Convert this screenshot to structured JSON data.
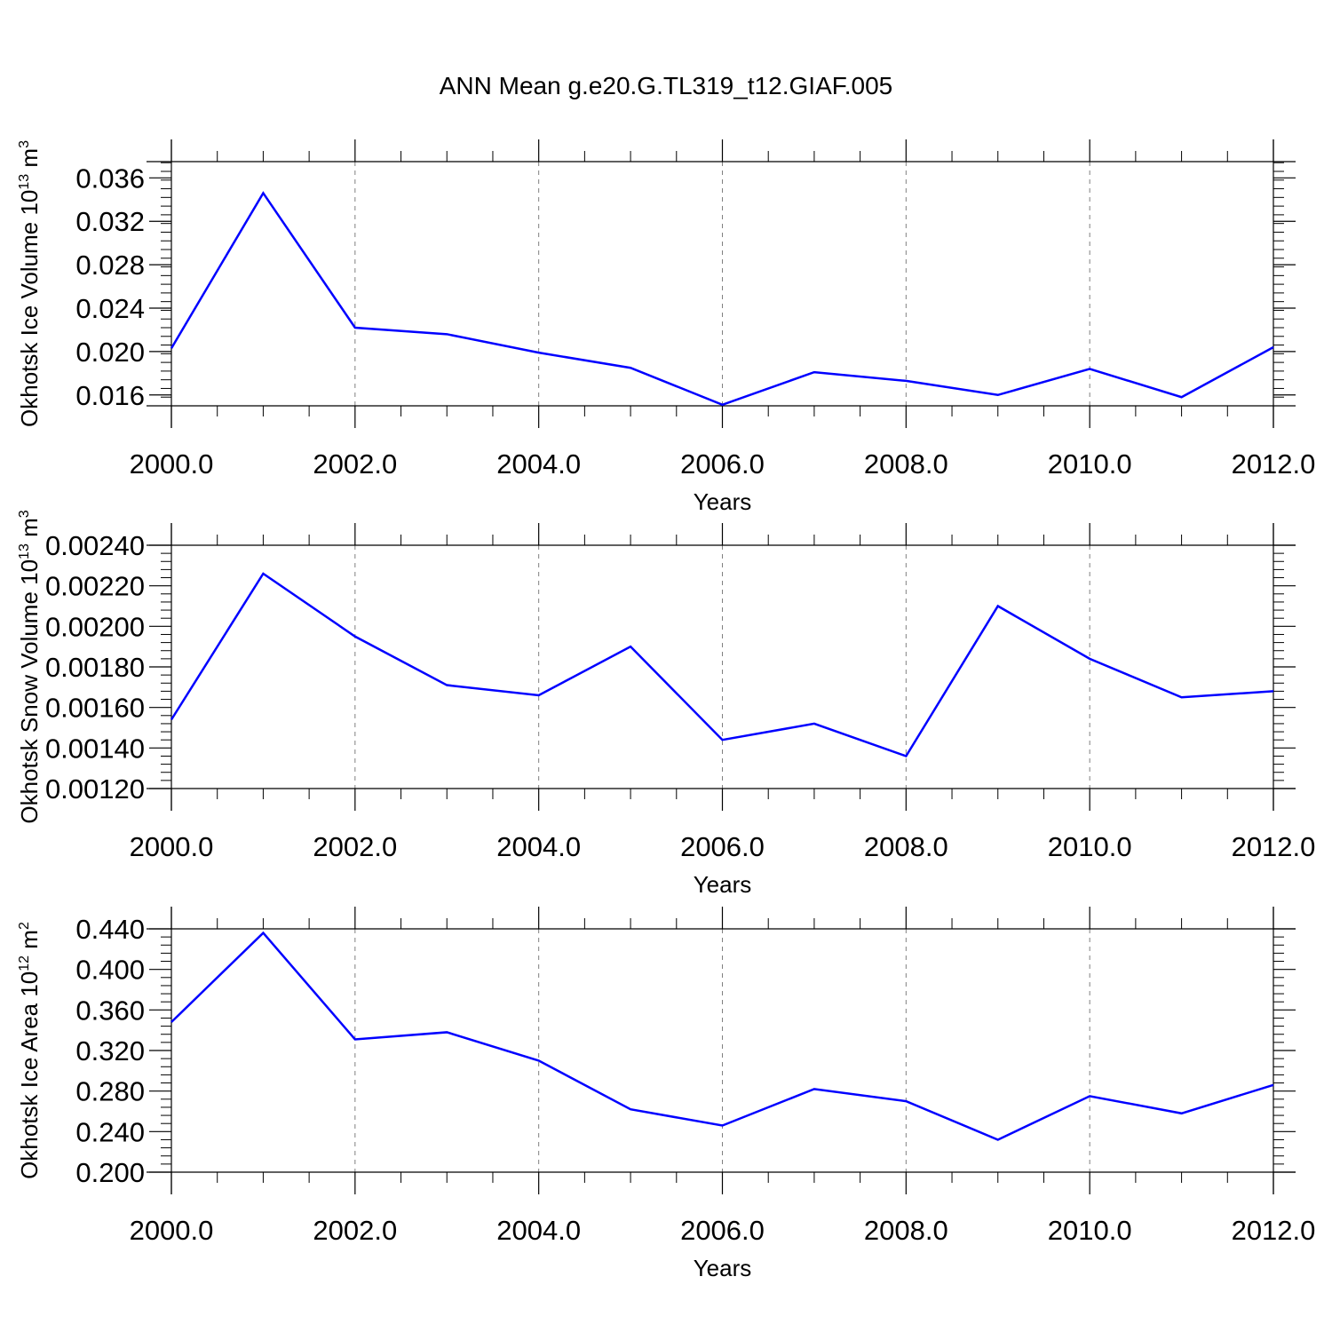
{
  "figure": {
    "title": "ANN Mean g.e20.G.TL319_t12.GIAF.005"
  },
  "colors": {
    "line": "#0000ff",
    "axis": "#000000",
    "grid": "#808080"
  },
  "chart_data": [
    {
      "type": "line",
      "xlabel": "Years",
      "ylabel": {
        "main": "Okhotsk Ice Volume 10",
        "exp": "13",
        "unit": " m",
        "unit_exp": "3"
      },
      "xlim": [
        2000,
        2012
      ],
      "ylim": [
        0.015,
        0.0375
      ],
      "xticks": [
        2000,
        2002,
        2004,
        2006,
        2008,
        2010,
        2012
      ],
      "xtick_labels": [
        "2000.0",
        "2002.0",
        "2004.0",
        "2006.0",
        "2008.0",
        "2010.0",
        "2012.0"
      ],
      "yticks": [
        0.016,
        0.02,
        0.024,
        0.028,
        0.032,
        0.036
      ],
      "ytick_labels": [
        "0.016",
        "0.020",
        "0.024",
        "0.028",
        "0.032",
        "0.036"
      ],
      "grid": "vertical dashed at major x ticks",
      "x": [
        2000,
        2001,
        2002,
        2003,
        2004,
        2005,
        2006,
        2007,
        2008,
        2009,
        2010,
        2011,
        2012
      ],
      "values": [
        0.0203,
        0.0346,
        0.0222,
        0.0216,
        0.0199,
        0.0185,
        0.0151,
        0.0181,
        0.0173,
        0.016,
        0.0184,
        0.0158,
        0.0204
      ]
    },
    {
      "type": "line",
      "xlabel": "Years",
      "ylabel": {
        "main": "Okhotsk Snow Volume 10",
        "exp": "13",
        "unit": " m",
        "unit_exp": "3"
      },
      "xlim": [
        2000,
        2012
      ],
      "ylim": [
        0.0012,
        0.0024
      ],
      "xticks": [
        2000,
        2002,
        2004,
        2006,
        2008,
        2010,
        2012
      ],
      "xtick_labels": [
        "2000.0",
        "2002.0",
        "2004.0",
        "2006.0",
        "2008.0",
        "2010.0",
        "2012.0"
      ],
      "yticks": [
        0.0012,
        0.0014,
        0.0016,
        0.0018,
        0.002,
        0.0022,
        0.0024
      ],
      "ytick_labels": [
        "0.00120",
        "0.00140",
        "0.00160",
        "0.00180",
        "0.00200",
        "0.00220",
        "0.00240"
      ],
      "grid": "vertical dashed at major x ticks",
      "x": [
        2000,
        2001,
        2002,
        2003,
        2004,
        2005,
        2006,
        2007,
        2008,
        2009,
        2010,
        2011,
        2012
      ],
      "values": [
        0.00154,
        0.00226,
        0.00195,
        0.00171,
        0.00166,
        0.0019,
        0.00144,
        0.00152,
        0.00136,
        0.0021,
        0.00184,
        0.00165,
        0.00168
      ]
    },
    {
      "type": "line",
      "xlabel": "Years",
      "ylabel": {
        "main": "Okhotsk Ice Area 10",
        "exp": "12",
        "unit": " m",
        "unit_exp": "2"
      },
      "xlim": [
        2000,
        2012
      ],
      "ylim": [
        0.2,
        0.44
      ],
      "xticks": [
        2000,
        2002,
        2004,
        2006,
        2008,
        2010,
        2012
      ],
      "xtick_labels": [
        "2000.0",
        "2002.0",
        "2004.0",
        "2006.0",
        "2008.0",
        "2010.0",
        "2012.0"
      ],
      "yticks": [
        0.2,
        0.24,
        0.28,
        0.32,
        0.36,
        0.4,
        0.44
      ],
      "ytick_labels": [
        "0.200",
        "0.240",
        "0.280",
        "0.320",
        "0.360",
        "0.400",
        "0.440"
      ],
      "grid": "vertical dashed at major x ticks",
      "x": [
        2000,
        2001,
        2002,
        2003,
        2004,
        2005,
        2006,
        2007,
        2008,
        2009,
        2010,
        2011,
        2012
      ],
      "values": [
        0.348,
        0.436,
        0.331,
        0.338,
        0.31,
        0.262,
        0.246,
        0.282,
        0.27,
        0.232,
        0.275,
        0.258,
        0.286
      ]
    }
  ]
}
